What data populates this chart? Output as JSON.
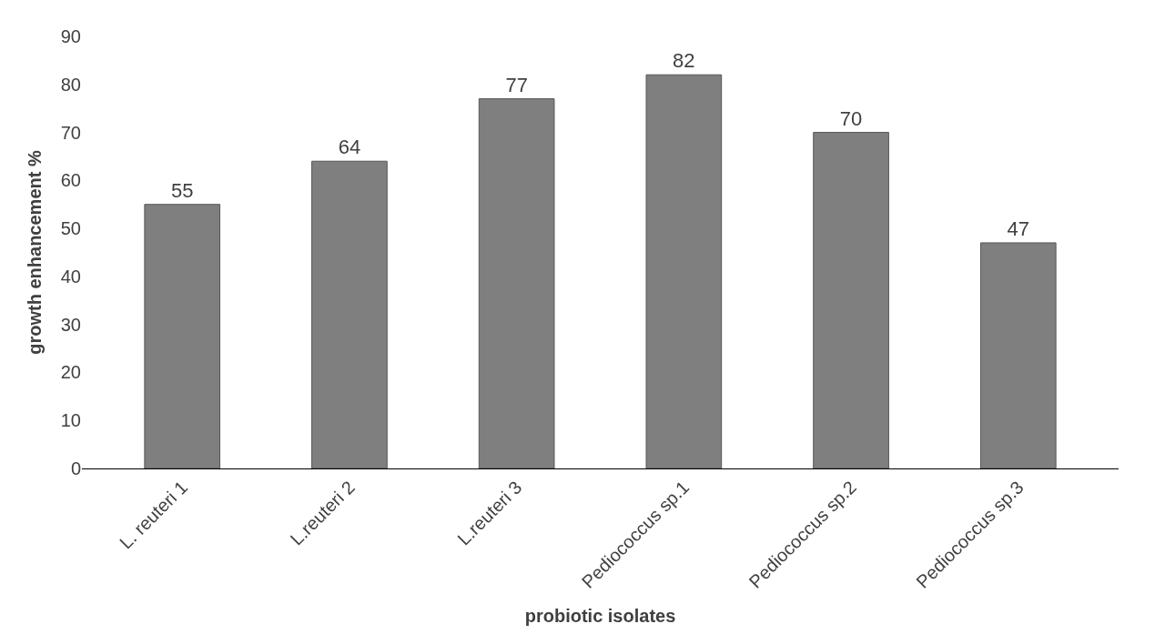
{
  "chart_data": {
    "type": "bar",
    "xlabel": "probiotic isolates",
    "ylabel": "growth enhancement %",
    "categories": [
      "L. reuteri 1",
      "L.reuteri 2",
      "L.reuteri 3",
      "Pediococcus sp.1",
      "Pediococcus sp.2",
      "Pediococcus sp.3"
    ],
    "values": [
      55,
      64,
      77,
      82,
      70,
      47
    ],
    "color": "#7f7f7f",
    "ylim": [
      0,
      90
    ],
    "yticks": [
      0,
      10,
      20,
      30,
      40,
      50,
      60,
      70,
      80,
      90
    ],
    "data_labels": true
  }
}
